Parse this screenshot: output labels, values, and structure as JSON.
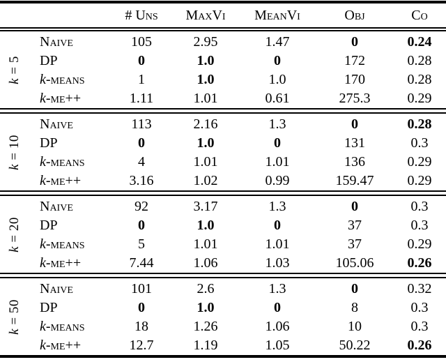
{
  "colors": {
    "background": "#ffffff",
    "text": "#000000",
    "rule": "#000000"
  },
  "table": {
    "headers": [
      "# Uns",
      "MaxVi",
      "MeanVi",
      "Obj",
      "Co"
    ],
    "groups": [
      {
        "k_it": "k",
        "k_rest": " = 5",
        "rows": [
          {
            "m_it": "",
            "m_sc": "Naive",
            "cells": [
              {
                "v": "105",
                "b": false
              },
              {
                "v": "2.95",
                "b": false
              },
              {
                "v": "1.47",
                "b": false
              },
              {
                "v": "0",
                "b": true
              },
              {
                "v": "0.24",
                "b": true
              }
            ]
          },
          {
            "m_it": "",
            "m_sc": "DP",
            "cells": [
              {
                "v": "0",
                "b": true
              },
              {
                "v": "1.0",
                "b": true
              },
              {
                "v": "0",
                "b": true
              },
              {
                "v": "172",
                "b": false
              },
              {
                "v": "0.28",
                "b": false
              }
            ]
          },
          {
            "m_it": "k",
            "m_sc": "-means",
            "cells": [
              {
                "v": "1",
                "b": false
              },
              {
                "v": "1.0",
                "b": true
              },
              {
                "v": "1.0",
                "b": false
              },
              {
                "v": "170",
                "b": false
              },
              {
                "v": "0.28",
                "b": false
              }
            ]
          },
          {
            "m_it": "k",
            "m_sc": "-me++",
            "cells": [
              {
                "v": "1.11",
                "b": false
              },
              {
                "v": "1.01",
                "b": false
              },
              {
                "v": "0.61",
                "b": false
              },
              {
                "v": "275.3",
                "b": false
              },
              {
                "v": "0.29",
                "b": false
              }
            ]
          }
        ]
      },
      {
        "k_it": "k",
        "k_rest": " = 10",
        "rows": [
          {
            "m_it": "",
            "m_sc": "Naive",
            "cells": [
              {
                "v": "113",
                "b": false
              },
              {
                "v": "2.16",
                "b": false
              },
              {
                "v": "1.3",
                "b": false
              },
              {
                "v": "0",
                "b": true
              },
              {
                "v": "0.28",
                "b": true
              }
            ]
          },
          {
            "m_it": "",
            "m_sc": "DP",
            "cells": [
              {
                "v": "0",
                "b": true
              },
              {
                "v": "1.0",
                "b": true
              },
              {
                "v": "0",
                "b": true
              },
              {
                "v": "131",
                "b": false
              },
              {
                "v": "0.3",
                "b": false
              }
            ]
          },
          {
            "m_it": "k",
            "m_sc": "-means",
            "cells": [
              {
                "v": "4",
                "b": false
              },
              {
                "v": "1.01",
                "b": false
              },
              {
                "v": "1.01",
                "b": false
              },
              {
                "v": "136",
                "b": false
              },
              {
                "v": "0.29",
                "b": false
              }
            ]
          },
          {
            "m_it": "k",
            "m_sc": "-me++",
            "cells": [
              {
                "v": "3.16",
                "b": false
              },
              {
                "v": "1.02",
                "b": false
              },
              {
                "v": "0.99",
                "b": false
              },
              {
                "v": "159.47",
                "b": false
              },
              {
                "v": "0.29",
                "b": false
              }
            ]
          }
        ]
      },
      {
        "k_it": "k",
        "k_rest": " = 20",
        "rows": [
          {
            "m_it": "",
            "m_sc": "Naive",
            "cells": [
              {
                "v": "92",
                "b": false
              },
              {
                "v": "3.17",
                "b": false
              },
              {
                "v": "1.3",
                "b": false
              },
              {
                "v": "0",
                "b": true
              },
              {
                "v": "0.3",
                "b": false
              }
            ]
          },
          {
            "m_it": "",
            "m_sc": "DP",
            "cells": [
              {
                "v": "0",
                "b": true
              },
              {
                "v": "1.0",
                "b": true
              },
              {
                "v": "0",
                "b": true
              },
              {
                "v": "37",
                "b": false
              },
              {
                "v": "0.3",
                "b": false
              }
            ]
          },
          {
            "m_it": "k",
            "m_sc": "-means",
            "cells": [
              {
                "v": "5",
                "b": false
              },
              {
                "v": "1.01",
                "b": false
              },
              {
                "v": "1.01",
                "b": false
              },
              {
                "v": "37",
                "b": false
              },
              {
                "v": "0.29",
                "b": false
              }
            ]
          },
          {
            "m_it": "k",
            "m_sc": "-me++",
            "cells": [
              {
                "v": "7.44",
                "b": false
              },
              {
                "v": "1.06",
                "b": false
              },
              {
                "v": "1.03",
                "b": false
              },
              {
                "v": "105.06",
                "b": false
              },
              {
                "v": "0.26",
                "b": true
              }
            ]
          }
        ]
      },
      {
        "k_it": "k",
        "k_rest": " = 50",
        "rows": [
          {
            "m_it": "",
            "m_sc": "Naive",
            "cells": [
              {
                "v": "101",
                "b": false
              },
              {
                "v": "2.6",
                "b": false
              },
              {
                "v": "1.3",
                "b": false
              },
              {
                "v": "0",
                "b": true
              },
              {
                "v": "0.32",
                "b": false
              }
            ]
          },
          {
            "m_it": "",
            "m_sc": "DP",
            "cells": [
              {
                "v": "0",
                "b": true
              },
              {
                "v": "1.0",
                "b": true
              },
              {
                "v": "0",
                "b": true
              },
              {
                "v": "8",
                "b": false
              },
              {
                "v": "0.3",
                "b": false
              }
            ]
          },
          {
            "m_it": "k",
            "m_sc": "-means",
            "cells": [
              {
                "v": "18",
                "b": false
              },
              {
                "v": "1.26",
                "b": false
              },
              {
                "v": "1.06",
                "b": false
              },
              {
                "v": "10",
                "b": false
              },
              {
                "v": "0.3",
                "b": false
              }
            ]
          },
          {
            "m_it": "k",
            "m_sc": "-me++",
            "cells": [
              {
                "v": "12.7",
                "b": false
              },
              {
                "v": "1.19",
                "b": false
              },
              {
                "v": "1.05",
                "b": false
              },
              {
                "v": "50.22",
                "b": false
              },
              {
                "v": "0.26",
                "b": true
              }
            ]
          }
        ]
      }
    ]
  }
}
